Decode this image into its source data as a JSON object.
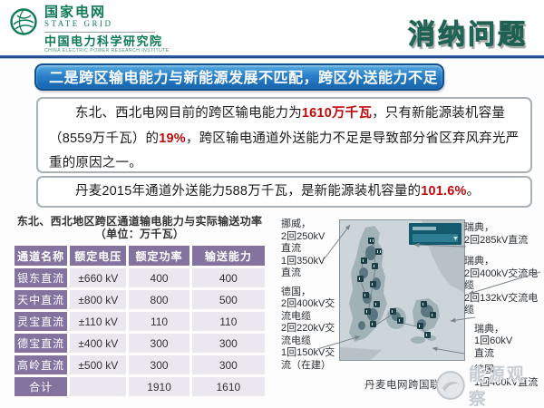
{
  "header": {
    "brand_cn": "国家电网",
    "brand_en": "STATE GRID",
    "institute_cn": "中国电力科学研究院",
    "institute_en": "CHINA ELECTRIC POWER RESEARCH INSTITUTE",
    "page_title": "消纳问题"
  },
  "banner": {
    "text": "二是跨区输电能力与新能源发展不匹配，跨区外送能力不足"
  },
  "paragraphs": {
    "p1": {
      "segments": [
        {
          "text": "东北、西北电网目前的跨区输电能力为",
          "highlight": false
        },
        {
          "text": "1610万千瓦",
          "highlight": true
        },
        {
          "text": "，只有新能源装机容量（8559万千瓦）的",
          "highlight": false
        },
        {
          "text": "19%",
          "highlight": true
        },
        {
          "text": "，跨区输电通道外送能力不足是导致部分省区弃风弃光严重的原因之一。",
          "highlight": false
        }
      ]
    },
    "p2": {
      "segments": [
        {
          "text": "丹麦2015年通道外送能力588万千瓦，是新能源装机容量的",
          "highlight": false
        },
        {
          "text": "101.6%",
          "highlight": true
        },
        {
          "text": "。",
          "highlight": false
        }
      ]
    }
  },
  "table": {
    "title_line1": "东北、西北地区跨区通道输电能力与实际输送功率",
    "title_line2": "（单位：万千瓦）",
    "columns": [
      "通道名称",
      "额定电压",
      "额定功率",
      "输送能力"
    ],
    "rows": [
      [
        "银东直流",
        "±660 kV",
        "400",
        "400"
      ],
      [
        "天中直流",
        "±800 kV",
        "800",
        "500"
      ],
      [
        "灵宝直流",
        "±110 kV",
        "110",
        "110"
      ],
      [
        "德宝直流",
        "±400 kV",
        "300",
        "300"
      ],
      [
        "高岭直流",
        "±500 kV",
        "300",
        "300"
      ],
      [
        "合计",
        "",
        "1910",
        "1610"
      ]
    ]
  },
  "figure": {
    "annotations_left": [
      {
        "lines": [
          "挪威，",
          "2回250kV",
          "直流",
          "1回350kV",
          "直流"
        ]
      },
      {
        "lines": [
          "德国，",
          "2回400kV交",
          "流电缆",
          "2回220kV交",
          "流电缆",
          "1回150kV交",
          "流（在建）"
        ]
      }
    ],
    "annotations_right": [
      {
        "lines": [
          "瑞典，",
          "2回285kV直流"
        ]
      },
      {
        "lines": [
          "瑞典，",
          "2回400kV交流电缆",
          "2回132kV交流电缆"
        ]
      },
      {
        "lines": [
          "瑞典，",
          "1回60kV",
          "直流"
        ]
      },
      {
        "lines": [
          "德国，",
          "1回400kV直流"
        ]
      }
    ],
    "caption": "丹麦电网跨国联络线",
    "watermark": "能源观察"
  },
  "colors": {
    "accent_teal": "#2fa08c",
    "brand_green": "#0e7a55",
    "banner_blue": "#1f6fba",
    "highlight_red": "#c00a0a",
    "table_purple": "#84739f",
    "table_cell_lavender": "#eae7f1",
    "map_sea": "#cdd5da",
    "map_land": "#a2b3b8"
  }
}
